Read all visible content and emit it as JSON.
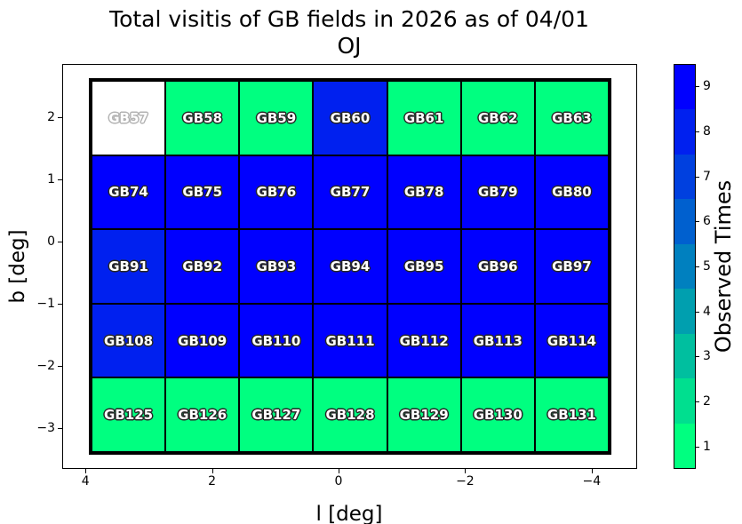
{
  "figure": {
    "title_line1": "Total visitis of GB fields in 2026 as of 04/01",
    "title_line2": "OJ",
    "xlabel": "l [deg]",
    "ylabel": "b [deg]"
  },
  "axes": {
    "xticks": [
      "4",
      "2",
      "0",
      "−2",
      "−4"
    ],
    "yticks": [
      "2",
      "1",
      "0",
      "−1",
      "−2",
      "−3"
    ]
  },
  "colorbar": {
    "label": "Observed Times",
    "ticks": [
      "1",
      "2",
      "3",
      "4",
      "5",
      "6",
      "7",
      "8",
      "9"
    ],
    "colors_low_to_high": [
      "#00FF80",
      "#00DF8F",
      "#00BF9F",
      "#009FAF",
      "#0080BF",
      "#0060CF",
      "#0040DF",
      "#0020EF",
      "#0000FF"
    ],
    "empty_cell_color": "#FFFFFF"
  },
  "chart_data": {
    "type": "heatmap",
    "title": "Total visitis of GB fields in 2026 as of 04/01\nOJ",
    "xlabel": "l [deg]",
    "ylabel": "b [deg]",
    "value_label": "Observed Times",
    "x_axis_inverted": true,
    "xlim": [
      4.4,
      -4.7
    ],
    "ylim": [
      -3.65,
      2.85
    ],
    "value_range": [
      0.5,
      9.5
    ],
    "colormap": "winter_r (9 discrete bins)",
    "rows": [
      {
        "fields": [
          "GB57",
          "GB58",
          "GB59",
          "GB60",
          "GB61",
          "GB62",
          "GB63"
        ],
        "values": [
          null,
          1,
          1,
          8,
          1,
          1,
          1
        ]
      },
      {
        "fields": [
          "GB74",
          "GB75",
          "GB76",
          "GB77",
          "GB78",
          "GB79",
          "GB80"
        ],
        "values": [
          9,
          9,
          9,
          9,
          9,
          9,
          9
        ]
      },
      {
        "fields": [
          "GB91",
          "GB92",
          "GB93",
          "GB94",
          "GB95",
          "GB96",
          "GB97"
        ],
        "values": [
          8,
          9,
          9,
          9,
          9,
          9,
          9
        ]
      },
      {
        "fields": [
          "GB108",
          "GB109",
          "GB110",
          "GB111",
          "GB112",
          "GB113",
          "GB114"
        ],
        "values": [
          8,
          9,
          9,
          9,
          9,
          9,
          9
        ]
      },
      {
        "fields": [
          "GB125",
          "GB126",
          "GB127",
          "GB128",
          "GB129",
          "GB130",
          "GB131"
        ],
        "values": [
          1,
          1,
          1,
          1,
          1,
          1,
          1
        ]
      }
    ]
  }
}
